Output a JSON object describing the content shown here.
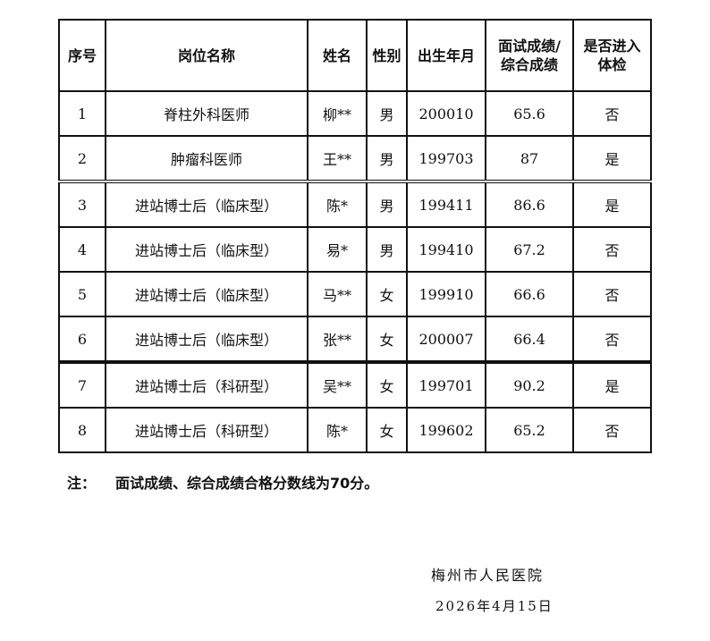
{
  "table": {
    "headers": [
      "序号",
      "岗位名称",
      "姓名",
      "性别",
      "出生年月",
      "面试成绩/\n综合成绩",
      "是否进入\n体检"
    ],
    "rows": [
      [
        "1",
        "脊柱外科医师",
        "柳**",
        "男",
        "200010",
        "65.6",
        "否"
      ],
      [
        "2",
        "肿瘤科医师",
        "王**",
        "男",
        "199703",
        "87",
        "是"
      ],
      [
        "3",
        "进站博士后（临床型）",
        "陈*",
        "男",
        "199411",
        "86.6",
        "是"
      ],
      [
        "4",
        "进站博士后（临床型）",
        "易*",
        "男",
        "199410",
        "67.2",
        "否"
      ],
      [
        "5",
        "进站博士后（临床型）",
        "马**",
        "女",
        "199910",
        "66.6",
        "否"
      ],
      [
        "6",
        "进站博士后（临床型）",
        "张**",
        "女",
        "200007",
        "66.4",
        "否"
      ],
      [
        "7",
        "进站博士后（科研型）",
        "吴**",
        "女",
        "199701",
        "90.2",
        "是"
      ],
      [
        "8",
        "进站博士后（科研型）",
        "陈*",
        "女",
        "199602",
        "65.2",
        "否"
      ]
    ]
  },
  "note": {
    "label": "注：",
    "text": "面试成绩、综合成绩合格分数线为70分。"
  },
  "footer": {
    "organization": "梅州市人民医院",
    "date": "2026年4月15日"
  }
}
